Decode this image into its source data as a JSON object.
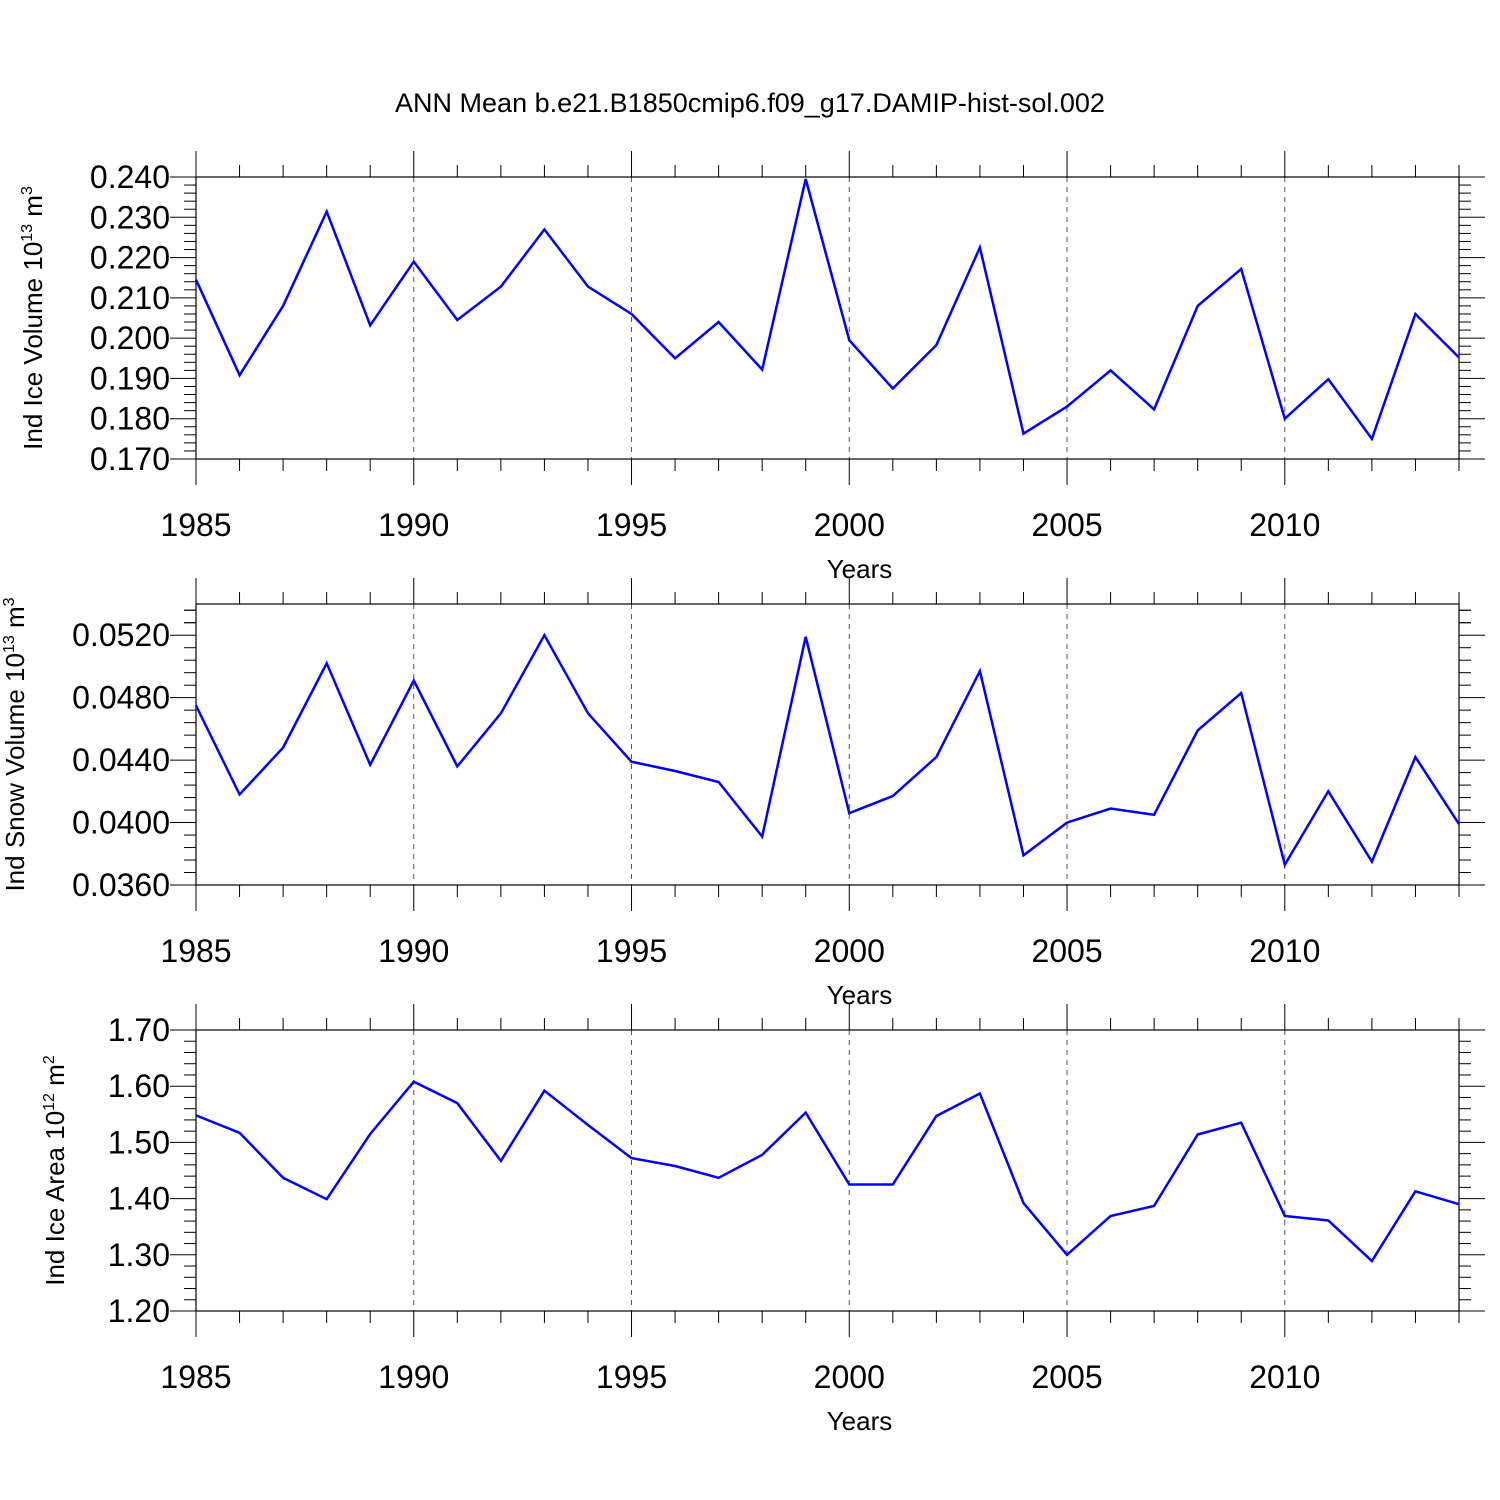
{
  "title": "ANN Mean b.e21.B1850cmip6.f09_g17.DAMIP-hist-sol.002",
  "line_color": "#0000ff",
  "chart_data": [
    {
      "type": "line",
      "xlabel": "Years",
      "ylabel": "Ind Ice Volume 10",
      "ylabel_exp": "13",
      "ylabel_unit": " m",
      "ylabel_unit_exp": "3",
      "xlim": [
        1985,
        2014
      ],
      "ylim": [
        0.17,
        0.24
      ],
      "xticks": [
        1985,
        1990,
        1995,
        2000,
        2005,
        2010
      ],
      "xtick_labels": [
        "1985",
        "1990",
        "1995",
        "2000",
        "2005",
        "2010"
      ],
      "yticks": [
        0.17,
        0.18,
        0.19,
        0.2,
        0.21,
        0.22,
        0.23,
        0.24
      ],
      "ytick_labels": [
        "0.170",
        "0.180",
        "0.190",
        "0.200",
        "0.210",
        "0.220",
        "0.230",
        "0.240"
      ],
      "grid": "vertical dashed at major x ticks",
      "series": [
        {
          "x": [
            1985,
            1986,
            1987,
            1988,
            1989,
            1990,
            1991,
            1992,
            1993,
            1994,
            1995,
            1996,
            1997,
            1998,
            1999,
            2000,
            2001,
            2002,
            2003,
            2004,
            2005,
            2006,
            2007,
            2008,
            2009,
            2010,
            2011,
            2012,
            2013,
            2014
          ],
          "values": [
            0.2145,
            0.1908,
            0.208,
            0.2314,
            0.2032,
            0.219,
            0.2045,
            0.2128,
            0.227,
            0.2128,
            0.206,
            0.195,
            0.204,
            0.1922,
            0.2395,
            0.1995,
            0.1875,
            0.1983,
            0.2225,
            0.1763,
            0.183,
            0.192,
            0.1823,
            0.208,
            0.2172,
            0.18,
            0.1898,
            0.175,
            0.206,
            0.1952
          ]
        }
      ]
    },
    {
      "type": "line",
      "xlabel": "Years",
      "ylabel": "Ind Snow Volume 10",
      "ylabel_exp": "13",
      "ylabel_unit": " m",
      "ylabel_unit_exp": "3",
      "xlim": [
        1985,
        2014
      ],
      "ylim": [
        0.036,
        0.054
      ],
      "xticks": [
        1985,
        1990,
        1995,
        2000,
        2005,
        2010
      ],
      "xtick_labels": [
        "1985",
        "1990",
        "1995",
        "2000",
        "2005",
        "2010"
      ],
      "yticks": [
        0.036,
        0.04,
        0.044,
        0.048,
        0.052
      ],
      "ytick_labels": [
        "0.0360",
        "0.0400",
        "0.0440",
        "0.0480",
        "0.0520"
      ],
      "grid": "vertical dashed at major x ticks",
      "series": [
        {
          "x": [
            1985,
            1986,
            1987,
            1988,
            1989,
            1990,
            1991,
            1992,
            1993,
            1994,
            1995,
            1996,
            1997,
            1998,
            1999,
            2000,
            2001,
            2002,
            2003,
            2004,
            2005,
            2006,
            2007,
            2008,
            2009,
            2010,
            2011,
            2012,
            2013,
            2014
          ],
          "values": [
            0.0475,
            0.0418,
            0.0448,
            0.0502,
            0.0437,
            0.0491,
            0.0436,
            0.047,
            0.052,
            0.047,
            0.0439,
            0.0433,
            0.0426,
            0.0391,
            0.0519,
            0.0406,
            0.0417,
            0.0442,
            0.0497,
            0.0379,
            0.04,
            0.0409,
            0.0405,
            0.0459,
            0.0483,
            0.0373,
            0.042,
            0.0375,
            0.0442,
            0.0399
          ]
        }
      ]
    },
    {
      "type": "line",
      "xlabel": "Years",
      "ylabel": "Ind Ice Area 10",
      "ylabel_exp": "12",
      "ylabel_unit": " m",
      "ylabel_unit_exp": "2",
      "xlim": [
        1985,
        2014
      ],
      "ylim": [
        1.2,
        1.7
      ],
      "xticks": [
        1985,
        1990,
        1995,
        2000,
        2005,
        2010
      ],
      "xtick_labels": [
        "1985",
        "1990",
        "1995",
        "2000",
        "2005",
        "2010"
      ],
      "yticks": [
        1.2,
        1.3,
        1.4,
        1.5,
        1.6,
        1.7
      ],
      "ytick_labels": [
        "1.20",
        "1.30",
        "1.40",
        "1.50",
        "1.60",
        "1.70"
      ],
      "grid": "vertical dashed at major x ticks",
      "series": [
        {
          "x": [
            1985,
            1986,
            1987,
            1988,
            1989,
            1990,
            1991,
            1992,
            1993,
            1994,
            1995,
            1996,
            1997,
            1998,
            1999,
            2000,
            2001,
            2002,
            2003,
            2004,
            2005,
            2006,
            2007,
            2008,
            2009,
            2010,
            2011,
            2012,
            2013,
            2014
          ],
          "values": [
            1.548,
            1.517,
            1.437,
            1.399,
            1.515,
            1.608,
            1.57,
            1.467,
            1.592,
            1.531,
            1.472,
            1.458,
            1.437,
            1.478,
            1.553,
            1.425,
            1.425,
            1.547,
            1.587,
            1.392,
            1.3,
            1.369,
            1.387,
            1.514,
            1.535,
            1.369,
            1.361,
            1.289,
            1.413,
            1.39
          ]
        }
      ]
    }
  ]
}
